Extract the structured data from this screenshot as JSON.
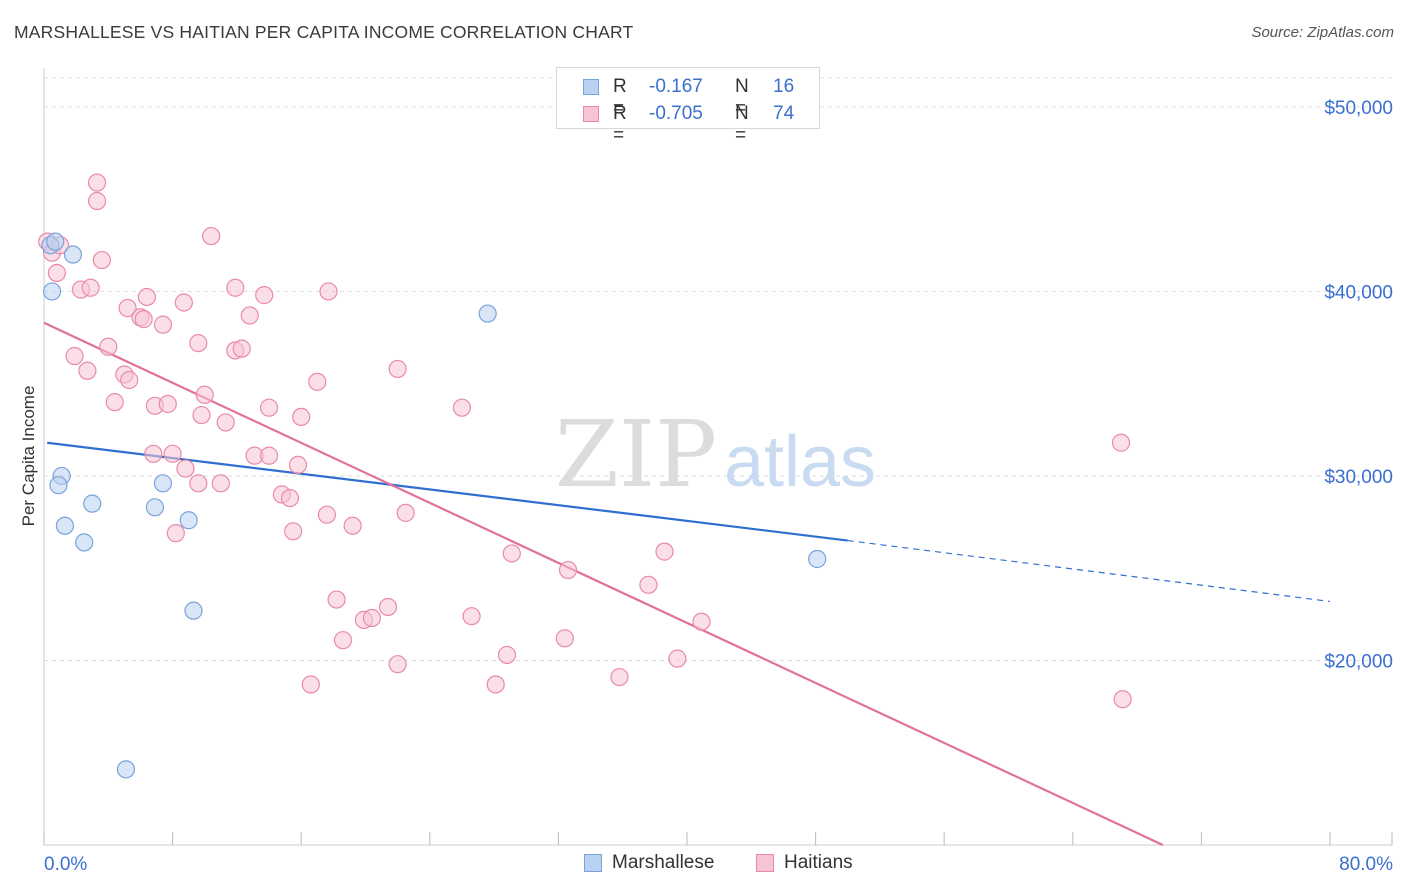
{
  "title": "MARSHALLESE VS HAITIAN PER CAPITA INCOME CORRELATION CHART",
  "source": "Source: ZipAtlas.com",
  "watermark": {
    "zip": "ZIP",
    "atlas": "atlas"
  },
  "legend_stats": [
    {
      "r_label": "R =",
      "r_value": "-0.167",
      "n_label": "N =",
      "n_value": "16"
    },
    {
      "r_label": "R =",
      "r_value": "-0.705",
      "n_label": "N =",
      "n_value": "74"
    }
  ],
  "legend_series": [
    "Marshallese",
    "Haitians"
  ],
  "colors": {
    "marshallese_fill": "#b9d2f2",
    "marshallese_stroke": "#7aa3dc",
    "marshallese_line": "#2f6fcf",
    "haitians_fill": "#f7c4d4",
    "haitians_stroke": "#e98aa9",
    "haitians_line": "#e2709a",
    "axis_label": "#3a6fd0",
    "grid": "#dddddd"
  },
  "chart_data": {
    "type": "scatter",
    "title": "MARSHALLESE VS HAITIAN PER CAPITA INCOME CORRELATION CHART",
    "xlabel": "",
    "ylabel": "Per Capita Income",
    "xlim": [
      0,
      80
    ],
    "ylim": [
      10000,
      52000
    ],
    "x_tick_labels": [
      "0.0%",
      "80.0%"
    ],
    "y_ticks": [
      20000,
      30000,
      40000,
      50000
    ],
    "y_tick_labels": [
      "$20,000",
      "$30,000",
      "$40,000",
      "$50,000"
    ],
    "grid": true,
    "series": [
      {
        "name": "Marshallese",
        "r": -0.167,
        "n": 16,
        "points": [
          [
            0.4,
            42500
          ],
          [
            0.7,
            42700
          ],
          [
            1.8,
            42000
          ],
          [
            0.5,
            40000
          ],
          [
            1.1,
            30000
          ],
          [
            0.9,
            29500
          ],
          [
            3.0,
            28500
          ],
          [
            1.3,
            27300
          ],
          [
            2.5,
            26400
          ],
          [
            7.4,
            29600
          ],
          [
            6.9,
            28300
          ],
          [
            9.0,
            27600
          ],
          [
            9.3,
            22700
          ],
          [
            5.1,
            14100
          ],
          [
            27.6,
            38800
          ],
          [
            48.1,
            25500
          ]
        ],
        "trend": {
          "x1": 0.2,
          "y1": 31800,
          "x2": 50.0,
          "y2": 26500,
          "dash_to_x": 80.0,
          "dash_to_y": 23200
        }
      },
      {
        "name": "Haitians",
        "r": -0.705,
        "n": 74,
        "points": [
          [
            3.3,
            45900
          ],
          [
            3.3,
            44900
          ],
          [
            0.2,
            42700
          ],
          [
            0.5,
            42100
          ],
          [
            1.0,
            42500
          ],
          [
            0.8,
            41000
          ],
          [
            3.6,
            41700
          ],
          [
            2.3,
            40100
          ],
          [
            2.9,
            40200
          ],
          [
            4.0,
            37000
          ],
          [
            1.9,
            36500
          ],
          [
            2.7,
            35700
          ],
          [
            5.2,
            39100
          ],
          [
            6.4,
            39700
          ],
          [
            6.0,
            38600
          ],
          [
            6.2,
            38500
          ],
          [
            7.4,
            38200
          ],
          [
            8.7,
            39400
          ],
          [
            10.4,
            43000
          ],
          [
            11.9,
            40200
          ],
          [
            12.8,
            38700
          ],
          [
            13.7,
            39800
          ],
          [
            17.7,
            40000
          ],
          [
            9.6,
            37200
          ],
          [
            11.9,
            36800
          ],
          [
            12.3,
            36900
          ],
          [
            4.4,
            34000
          ],
          [
            5.0,
            35500
          ],
          [
            5.3,
            35200
          ],
          [
            6.9,
            33800
          ],
          [
            7.7,
            33900
          ],
          [
            10.0,
            34400
          ],
          [
            9.8,
            33300
          ],
          [
            11.3,
            32900
          ],
          [
            14.0,
            33700
          ],
          [
            16.0,
            33200
          ],
          [
            17.0,
            35100
          ],
          [
            22.0,
            35800
          ],
          [
            26.0,
            33700
          ],
          [
            6.8,
            31200
          ],
          [
            8.0,
            31200
          ],
          [
            8.8,
            30400
          ],
          [
            9.6,
            29600
          ],
          [
            11.0,
            29600
          ],
          [
            13.1,
            31100
          ],
          [
            14.0,
            31100
          ],
          [
            15.8,
            30600
          ],
          [
            14.8,
            29000
          ],
          [
            15.3,
            28800
          ],
          [
            15.5,
            27000
          ],
          [
            17.6,
            27900
          ],
          [
            19.2,
            27300
          ],
          [
            22.5,
            28000
          ],
          [
            8.2,
            26900
          ],
          [
            29.1,
            25800
          ],
          [
            32.6,
            24900
          ],
          [
            37.6,
            24100
          ],
          [
            38.6,
            25900
          ],
          [
            18.2,
            23300
          ],
          [
            19.9,
            22200
          ],
          [
            20.4,
            22300
          ],
          [
            21.4,
            22900
          ],
          [
            26.6,
            22400
          ],
          [
            18.6,
            21100
          ],
          [
            22.0,
            19800
          ],
          [
            28.8,
            20300
          ],
          [
            32.4,
            21200
          ],
          [
            39.4,
            20100
          ],
          [
            40.9,
            22100
          ],
          [
            16.6,
            18700
          ],
          [
            28.1,
            18700
          ],
          [
            35.8,
            19100
          ],
          [
            67.0,
            31800
          ],
          [
            67.1,
            17900
          ]
        ],
        "trend": {
          "x1": 0.0,
          "y1": 38300,
          "x2": 69.6,
          "y2": 10000
        }
      }
    ]
  }
}
